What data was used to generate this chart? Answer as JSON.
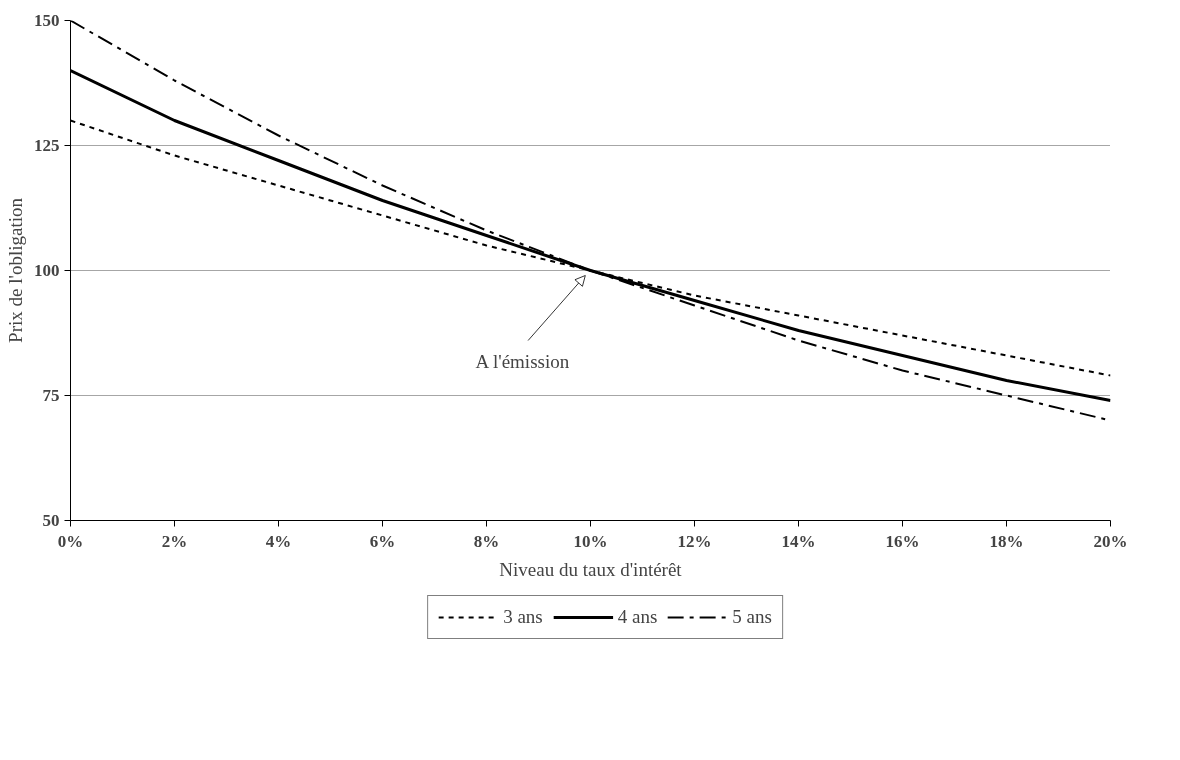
{
  "chart_data": {
    "type": "line",
    "xlabel": "Niveau du taux d'intérêt",
    "ylabel": "Prix de l'obligation",
    "x": [
      0,
      2,
      4,
      6,
      8,
      10,
      12,
      14,
      16,
      18,
      20
    ],
    "series": [
      {
        "name": "3 ans",
        "color": "#000000",
        "line_style": "dotted",
        "values": [
          130,
          123,
          117,
          111,
          105,
          100,
          95,
          91,
          87,
          83,
          79
        ]
      },
      {
        "name": "4 ans",
        "color": "#000000",
        "line_style": "solid",
        "values": [
          140,
          130,
          122,
          114,
          107,
          100,
          94,
          88,
          83,
          78,
          74
        ]
      },
      {
        "name": "5 ans",
        "color": "#000000",
        "line_style": "dashed",
        "values": [
          150,
          138,
          127,
          117,
          108,
          100,
          93,
          86,
          80,
          75,
          70
        ]
      }
    ],
    "xlim": [
      0,
      20
    ],
    "ylim": [
      50,
      150
    ],
    "xticks": [
      {
        "value": 0,
        "label": "0%"
      },
      {
        "value": 2,
        "label": "2%"
      },
      {
        "value": 4,
        "label": "4%"
      },
      {
        "value": 6,
        "label": "6%"
      },
      {
        "value": 8,
        "label": "8%"
      },
      {
        "value": 10,
        "label": "10%"
      },
      {
        "value": 12,
        "label": "12%"
      },
      {
        "value": 14,
        "label": "14%"
      },
      {
        "value": 16,
        "label": "16%"
      },
      {
        "value": 18,
        "label": "18%"
      },
      {
        "value": 20,
        "label": "20%"
      }
    ],
    "yticks": [
      50,
      75,
      100,
      125,
      150
    ],
    "grid": "y",
    "legend": "bottom",
    "marker": "none",
    "annotations": [
      {
        "text": "A l'émission",
        "x": 10,
        "y": 100
      }
    ]
  }
}
